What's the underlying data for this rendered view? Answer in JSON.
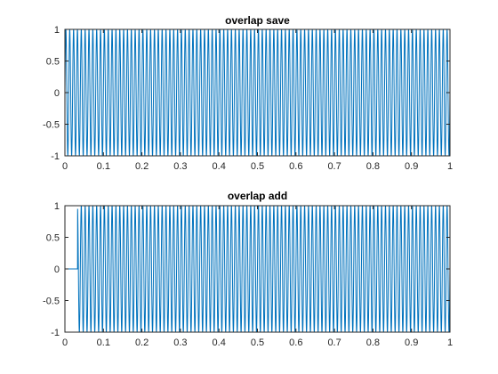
{
  "chart_data": [
    {
      "type": "line",
      "title": "overlap save",
      "xlabel": "",
      "ylabel": "",
      "xlim": [
        0,
        1
      ],
      "ylim": [
        -1,
        1
      ],
      "x_ticks": [
        "0",
        "0.1",
        "0.2",
        "0.3",
        "0.4",
        "0.5",
        "0.6",
        "0.7",
        "0.8",
        "0.9",
        "1"
      ],
      "y_ticks": [
        "-1",
        "-0.5",
        "0",
        "0.5",
        "1"
      ],
      "grid": false,
      "series": [
        {
          "signal": "sinusoid",
          "amplitude": 1,
          "frequency_cycles_per_unit": 100,
          "x_range": [
            0,
            1
          ],
          "color": "#0072BD"
        }
      ]
    },
    {
      "type": "line",
      "title": "overlap add",
      "xlabel": "",
      "ylabel": "",
      "xlim": [
        0,
        1
      ],
      "ylim": [
        -1,
        1
      ],
      "x_ticks": [
        "0",
        "0.1",
        "0.2",
        "0.3",
        "0.4",
        "0.5",
        "0.6",
        "0.7",
        "0.8",
        "0.9",
        "1"
      ],
      "y_ticks": [
        "-1",
        "-0.5",
        "0",
        "0.5",
        "1"
      ],
      "grid": false,
      "series": [
        {
          "signal": "sinusoid",
          "amplitude": 1,
          "frequency_cycles_per_unit": 100,
          "zero_until_x": 0.033,
          "x_range": [
            0,
            1
          ],
          "color": "#0072BD"
        }
      ]
    }
  ]
}
